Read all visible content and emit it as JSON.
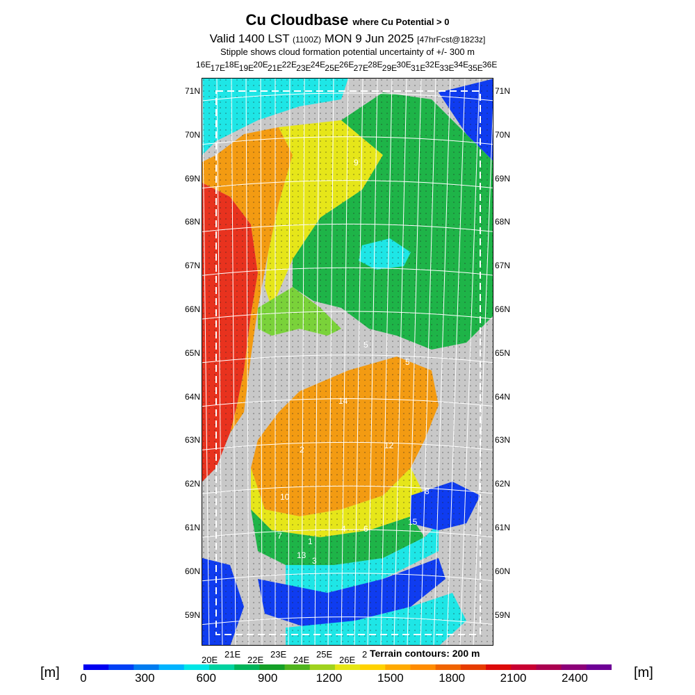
{
  "header": {
    "title": "Cu Cloudbase",
    "title_qualifier": "where Cu Potential > 0",
    "valid_prefix": "Valid 1400 LST",
    "valid_utc": "(1100Z)",
    "valid_date": "MON 9 Jun 2025",
    "forecast_tag": "[47hrFcst@1823z]",
    "stipple_note": "Stipple shows cloud formation potential uncertainty of +/- 300 m"
  },
  "map": {
    "lon_top": [
      "16E",
      "17E",
      "18E",
      "19E",
      "20E",
      "21E",
      "22E",
      "23E",
      "24E",
      "25E",
      "26E",
      "27E",
      "28E",
      "29E",
      "30E",
      "31E",
      "32E",
      "33E",
      "34E",
      "35E",
      "36E"
    ],
    "lon_bottom": [
      "20E",
      "21E",
      "22E",
      "23E",
      "24E",
      "25E",
      "26E",
      "2"
    ],
    "lat_left": [
      "71N",
      "70N",
      "69N",
      "68N",
      "67N",
      "66N",
      "65N",
      "64N",
      "63N",
      "62N",
      "61N",
      "60N",
      "59N"
    ],
    "lat_right": [
      "71N",
      "70N",
      "69N",
      "68N",
      "67N",
      "66N",
      "65N",
      "64N",
      "63N",
      "62N",
      "61N",
      "60N",
      "59N"
    ],
    "contour_labels": [
      "9",
      "5",
      "14",
      "2",
      "12",
      "10",
      "8",
      "4",
      "6",
      "15",
      "7",
      "1",
      "13",
      "3",
      "5"
    ],
    "terrain_note": "Terrain contours: 200 m",
    "land_colors": {
      "red": "#e8321e",
      "orange": "#f39b12",
      "yellow": "#e6e619",
      "lightgreen": "#7ad23a",
      "green": "#1eb448",
      "cyan": "#1ee6e6",
      "blue": "#0f3cf0",
      "gray": "#c8c8c8"
    }
  },
  "colorbar": {
    "unit_left": "[m]",
    "unit_right": "[m]",
    "ticks": [
      "0",
      "300",
      "600",
      "900",
      "1200",
      "1500",
      "1800",
      "2100",
      "2400"
    ],
    "colors": [
      "#0000f0",
      "#0040f5",
      "#007cf0",
      "#00b4ff",
      "#00e6e6",
      "#00d2a0",
      "#00b45a",
      "#14a028",
      "#50b41e",
      "#a0d21e",
      "#e6e614",
      "#ffd200",
      "#ffaa00",
      "#ff8c00",
      "#f06400",
      "#e63c00",
      "#dc0a0a",
      "#c80032",
      "#aa0050",
      "#8c0078",
      "#6e0096"
    ]
  }
}
